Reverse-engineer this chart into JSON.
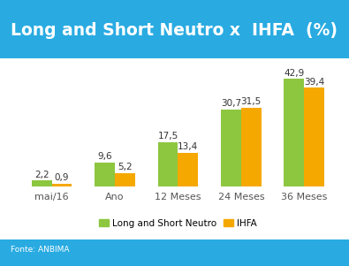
{
  "title": "Long and Short Neutro x  IHFA  (%)",
  "categories": [
    "mai/16",
    "Ano",
    "12 Meses",
    "24 Meses",
    "36 Meses"
  ],
  "long_short_values": [
    2.2,
    9.6,
    17.5,
    30.7,
    42.9
  ],
  "ihfa_values": [
    0.9,
    5.2,
    13.4,
    31.5,
    39.4
  ],
  "long_short_color": "#8DC63F",
  "ihfa_color": "#F5A800",
  "background_color": "#29ABE2",
  "plot_bg_color": "#FFFFFF",
  "title_color": "#FFFFFF",
  "tick_color": "#555555",
  "footer": "Fonte: ANBIMA",
  "legend_labels": [
    "Long and Short Neutro",
    "IHFA"
  ],
  "bar_width": 0.32,
  "ylim": [
    0,
    50
  ],
  "title_fontsize": 13.5,
  "bar_label_fontsize": 7.5,
  "tick_fontsize": 8,
  "legend_fontsize": 7.5,
  "footer_fontsize": 6.5
}
